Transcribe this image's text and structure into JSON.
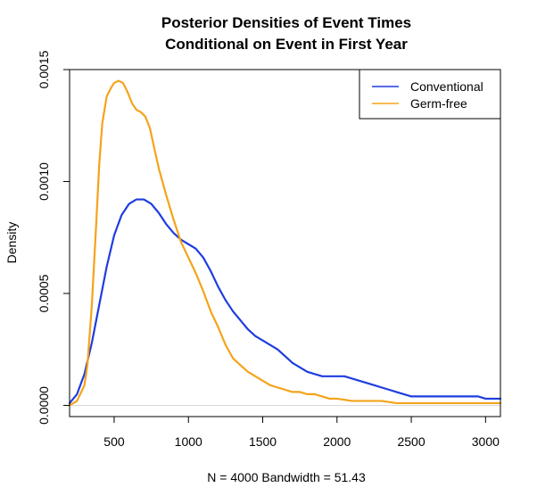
{
  "chart_data": {
    "type": "line",
    "title": "Posterior Densities of Event Times",
    "subtitle": "Conditional on Event in First Year",
    "xlabel": "N = 4000   Bandwidth = 51.43",
    "ylabel": "Density",
    "xlim": [
      200,
      3100
    ],
    "ylim": [
      -5e-05,
      0.0015
    ],
    "x_ticks": [
      500,
      1000,
      1500,
      2000,
      2500,
      3000
    ],
    "x_tick_labels": [
      "500",
      "1000",
      "1500",
      "2000",
      "2500",
      "3000"
    ],
    "y_ticks": [
      0.0,
      0.0005,
      0.001,
      0.0015
    ],
    "y_tick_labels": [
      "0.0000",
      "0.0005",
      "0.0010",
      "0.0015"
    ],
    "legend_position": "top-right",
    "grid": false,
    "baseline": 0,
    "series": [
      {
        "name": "Conventional",
        "color": "#1f3de0",
        "x": [
          200,
          250,
          300,
          350,
          400,
          450,
          500,
          550,
          600,
          650,
          700,
          750,
          800,
          850,
          900,
          950,
          1000,
          1050,
          1100,
          1150,
          1200,
          1250,
          1300,
          1350,
          1400,
          1450,
          1500,
          1550,
          1600,
          1650,
          1700,
          1750,
          1800,
          1850,
          1900,
          1950,
          2000,
          2050,
          2100,
          2150,
          2200,
          2250,
          2300,
          2350,
          2400,
          2450,
          2500,
          2550,
          2600,
          2650,
          2700,
          2750,
          2800,
          2850,
          2900,
          2950,
          3000,
          3050,
          3100
        ],
        "y": [
          1e-05,
          5e-05,
          0.00014,
          0.00028,
          0.00045,
          0.00062,
          0.00076,
          0.00085,
          0.0009,
          0.00092,
          0.00092,
          0.0009,
          0.00086,
          0.00081,
          0.00077,
          0.00074,
          0.00072,
          0.0007,
          0.00066,
          0.0006,
          0.00053,
          0.00047,
          0.00042,
          0.00038,
          0.00034,
          0.00031,
          0.00029,
          0.00027,
          0.00025,
          0.00022,
          0.00019,
          0.00017,
          0.00015,
          0.00014,
          0.00013,
          0.00013,
          0.00013,
          0.00013,
          0.00012,
          0.00011,
          0.0001,
          9e-05,
          8e-05,
          7e-05,
          6e-05,
          5e-05,
          4e-05,
          4e-05,
          4e-05,
          4e-05,
          4e-05,
          4e-05,
          4e-05,
          4e-05,
          4e-05,
          4e-05,
          3e-05,
          3e-05,
          3e-05
        ]
      },
      {
        "name": "Germ-free",
        "color": "#f5a31a",
        "x": [
          200,
          250,
          300,
          320,
          350,
          380,
          400,
          420,
          450,
          480,
          500,
          530,
          560,
          590,
          620,
          650,
          680,
          710,
          740,
          770,
          800,
          850,
          900,
          950,
          1000,
          1050,
          1100,
          1150,
          1200,
          1250,
          1300,
          1350,
          1400,
          1450,
          1500,
          1550,
          1600,
          1650,
          1700,
          1750,
          1800,
          1850,
          1900,
          1950,
          2000,
          2100,
          2200,
          2300,
          2400,
          2500,
          2600,
          2700,
          2800,
          2900,
          3000,
          3100
        ],
        "y": [
          0.0,
          2e-05,
          9e-05,
          0.00018,
          0.00045,
          0.00082,
          0.00108,
          0.00126,
          0.00138,
          0.00142,
          0.00144,
          0.00145,
          0.00144,
          0.0014,
          0.00135,
          0.00132,
          0.00131,
          0.00129,
          0.00124,
          0.00115,
          0.00106,
          0.00094,
          0.00083,
          0.00073,
          0.00066,
          0.00059,
          0.00051,
          0.00042,
          0.00035,
          0.00027,
          0.00021,
          0.00018,
          0.00015,
          0.00013,
          0.00011,
          9e-05,
          8e-05,
          7e-05,
          6e-05,
          6e-05,
          5e-05,
          5e-05,
          4e-05,
          3e-05,
          3e-05,
          2e-05,
          2e-05,
          2e-05,
          1e-05,
          1e-05,
          1e-05,
          1e-05,
          1e-05,
          1e-05,
          1e-05,
          1e-05
        ]
      }
    ]
  }
}
